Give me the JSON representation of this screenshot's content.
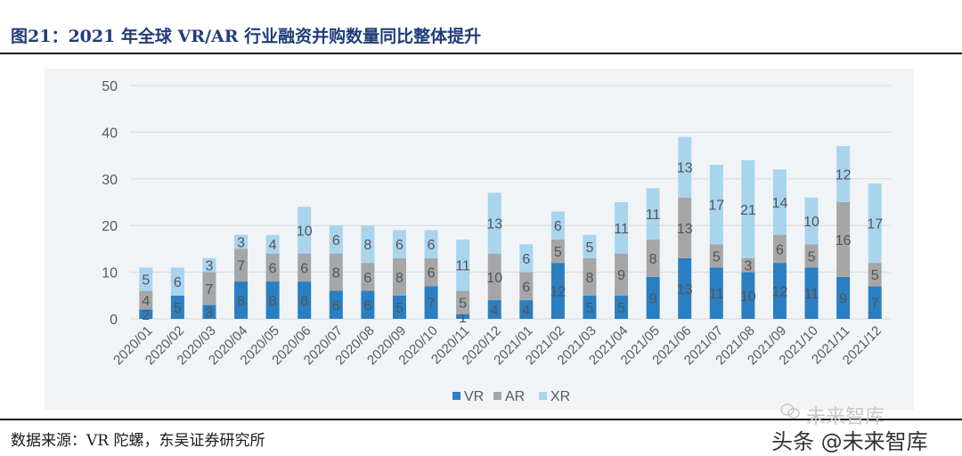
{
  "figure_title": "图21：2021 年全球 VR/AR 行业融资并购数量同比整体提升",
  "source_text": "数据来源：VR 陀螺，东吴证券研究所",
  "watermark_text": "头条 @未来智库",
  "watermark_faint_text": "未来智库",
  "colors": {
    "VR": "#2a7fc2",
    "AR": "#a6a6a6",
    "XR": "#a9d4ee",
    "grid": "#d9d9d9",
    "label": "#555555"
  },
  "chart_data": {
    "type": "bar",
    "stacked": true,
    "title": "",
    "xlabel": "",
    "ylabel": "",
    "ylim": [
      0,
      50
    ],
    "yticks": [
      0,
      10,
      20,
      30,
      40,
      50
    ],
    "grid": true,
    "legend_position": "bottom",
    "categories": [
      "2020/01",
      "2020/02",
      "2020/03",
      "2020/04",
      "2020/05",
      "2020/06",
      "2020/07",
      "2020/08",
      "2020/09",
      "2020/10",
      "2020/11",
      "2020/12",
      "2021/01",
      "2021/02",
      "2021/03",
      "2021/04",
      "2021/05",
      "2021/06",
      "2021/07",
      "2021/08",
      "2021/09",
      "2021/10",
      "2021/11",
      "2021/12"
    ],
    "series": [
      {
        "name": "VR",
        "values": [
          2,
          5,
          3,
          8,
          8,
          8,
          6,
          6,
          5,
          7,
          1,
          4,
          4,
          12,
          5,
          5,
          9,
          13,
          11,
          10,
          12,
          11,
          9,
          7
        ]
      },
      {
        "name": "AR",
        "values": [
          4,
          0,
          7,
          7,
          6,
          6,
          8,
          6,
          8,
          6,
          5,
          10,
          6,
          5,
          8,
          9,
          8,
          13,
          5,
          3,
          6,
          5,
          16,
          5
        ]
      },
      {
        "name": "XR",
        "values": [
          5,
          6,
          3,
          3,
          4,
          10,
          6,
          8,
          6,
          6,
          11,
          13,
          6,
          6,
          5,
          11,
          11,
          13,
          17,
          21,
          14,
          10,
          12,
          17
        ]
      }
    ]
  }
}
